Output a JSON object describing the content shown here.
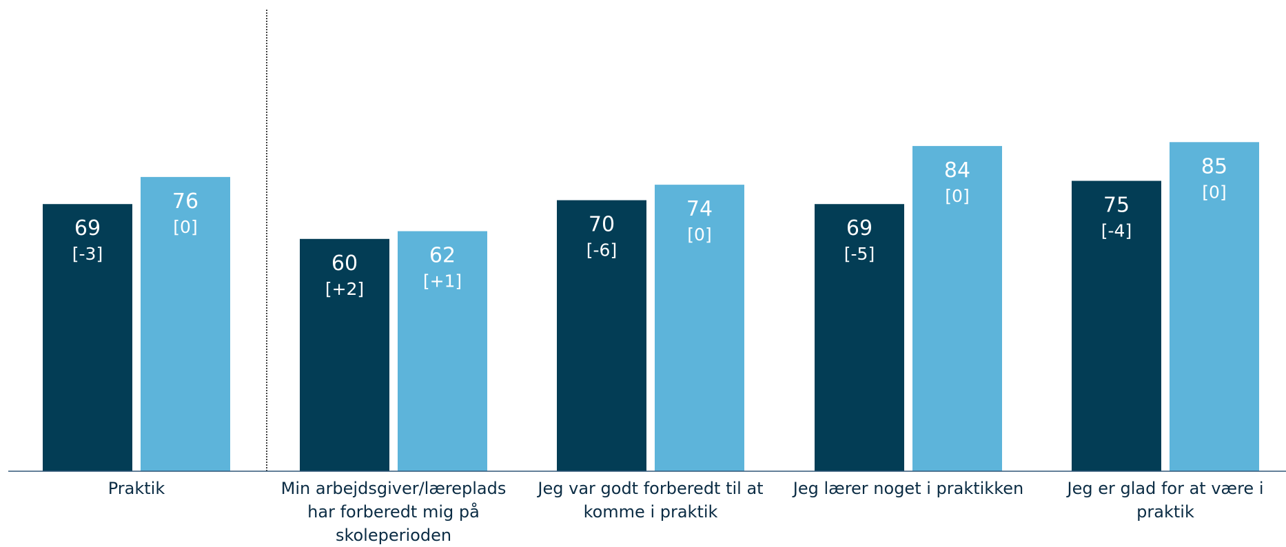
{
  "chart_data": {
    "type": "bar",
    "categories": [
      "Praktik",
      "Min arbejdsgiver/læreplads har forberedt mig på skoleperioden",
      "Jeg var godt forberedt til at komme i praktik",
      "Jeg lærer noget i praktikken",
      "Jeg er glad for at være i praktik"
    ],
    "series": [
      {
        "values": [
          69,
          60,
          70,
          69,
          75
        ],
        "changes": [
          "[-3]",
          "[+2]",
          "[-6]",
          "[-5]",
          "[-4]"
        ],
        "color": "#033d55",
        "label_color": "#ffffff"
      },
      {
        "values": [
          76,
          62,
          74,
          84,
          85
        ],
        "changes": [
          "[0]",
          "[+1]",
          "[0]",
          "[0]",
          "[0]"
        ],
        "color": "#5db4da",
        "label_color": "#ffffff"
      }
    ],
    "ylim": [
      0,
      100
    ],
    "grid": false,
    "legend": "none",
    "separator_after_category": 0,
    "axis_color": "#2f5576"
  }
}
